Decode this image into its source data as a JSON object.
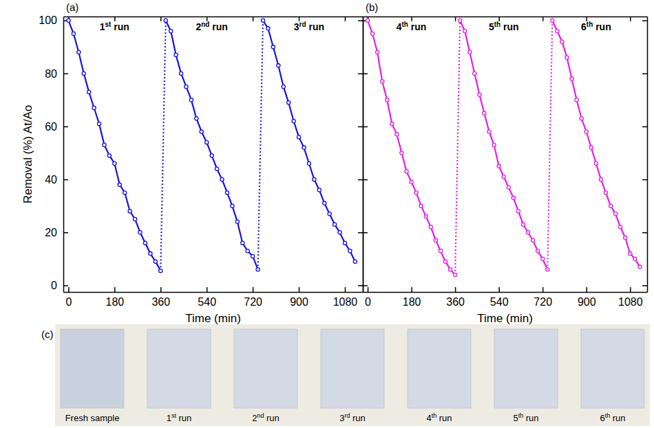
{
  "chart_data": [
    {
      "type": "line",
      "panel_label": "(a)",
      "x_label": "Time (min)",
      "y_label": "Removal (%) At/Ao",
      "xlim": [
        -20,
        1150
      ],
      "xticks": [
        0,
        180,
        360,
        540,
        720,
        900,
        1080
      ],
      "ylim": [
        -2.5,
        101.5
      ],
      "yticks": [
        0,
        20,
        40,
        60,
        80,
        100
      ],
      "series": [
        {
          "name": "1st run",
          "color": "#1414e6",
          "marker": "circle",
          "x": [
            0,
            20,
            40,
            60,
            80,
            100,
            120,
            140,
            160,
            180,
            200,
            220,
            240,
            260,
            280,
            300,
            320,
            340,
            360
          ],
          "values": [
            100,
            95,
            88,
            80,
            73,
            67,
            61,
            53,
            49,
            46,
            38,
            35,
            28,
            25,
            20,
            16,
            12,
            9,
            5.5
          ]
        },
        {
          "name": "2nd run",
          "color": "#1414e6",
          "marker": "circle",
          "x": [
            380,
            400,
            420,
            440,
            460,
            480,
            500,
            520,
            540,
            560,
            580,
            600,
            620,
            640,
            660,
            680,
            700,
            720,
            740
          ],
          "values": [
            100,
            96,
            87,
            80,
            75,
            70,
            63,
            58,
            54,
            49,
            44,
            40,
            35,
            30,
            24,
            16,
            13,
            11,
            6
          ]
        },
        {
          "name": "3rd run",
          "color": "#1414e6",
          "marker": "circle",
          "x": [
            760,
            780,
            800,
            820,
            840,
            860,
            880,
            900,
            920,
            940,
            960,
            980,
            1000,
            1020,
            1040,
            1060,
            1080,
            1100,
            1120
          ],
          "values": [
            100,
            97,
            90,
            83,
            75,
            69,
            62,
            56,
            52,
            46,
            40,
            36,
            31,
            27,
            23,
            20,
            16,
            13,
            9
          ]
        }
      ]
    },
    {
      "type": "line",
      "panel_label": "(b)",
      "x_label": "Time (min)",
      "tick_labels": "x",
      "xlim": [
        -20,
        1150
      ],
      "xticks": [
        0,
        180,
        360,
        540,
        720,
        900,
        1080
      ],
      "ylim": [
        -2.5,
        101.5
      ],
      "yticks": [
        0,
        20,
        40,
        60,
        80,
        100
      ],
      "series": [
        {
          "name": "4th run",
          "color": "#e61ee6",
          "marker": "circle",
          "x": [
            0,
            20,
            40,
            60,
            80,
            100,
            120,
            140,
            160,
            180,
            200,
            220,
            240,
            260,
            280,
            300,
            320,
            340,
            360
          ],
          "values": [
            100,
            95,
            88,
            77,
            70,
            61,
            57,
            50,
            43,
            39,
            35,
            30,
            26,
            22,
            17,
            13,
            9,
            6,
            4
          ]
        },
        {
          "name": "5th run",
          "color": "#e61ee6",
          "marker": "circle",
          "x": [
            380,
            400,
            420,
            440,
            460,
            480,
            500,
            520,
            540,
            560,
            580,
            600,
            620,
            640,
            660,
            680,
            700,
            720,
            740
          ],
          "values": [
            100,
            96,
            88,
            80,
            72,
            65,
            58,
            53,
            45,
            41,
            37,
            33,
            28,
            23,
            20,
            17,
            13,
            10,
            6
          ]
        },
        {
          "name": "6th run",
          "color": "#e61ee6",
          "marker": "circle",
          "x": [
            760,
            780,
            800,
            820,
            840,
            860,
            880,
            900,
            920,
            940,
            960,
            980,
            1000,
            1020,
            1040,
            1060,
            1080,
            1100,
            1120
          ],
          "values": [
            100,
            96,
            92,
            86,
            78,
            70,
            63,
            58,
            52,
            46,
            40,
            35,
            30,
            27,
            22,
            18,
            12,
            10,
            7
          ]
        }
      ]
    }
  ],
  "panel_c": {
    "label": "(c)",
    "captions": [
      "Fresh sample",
      "1st run",
      "2nd run",
      "3rd run",
      "4th run",
      "5th run",
      "6th run"
    ]
  }
}
